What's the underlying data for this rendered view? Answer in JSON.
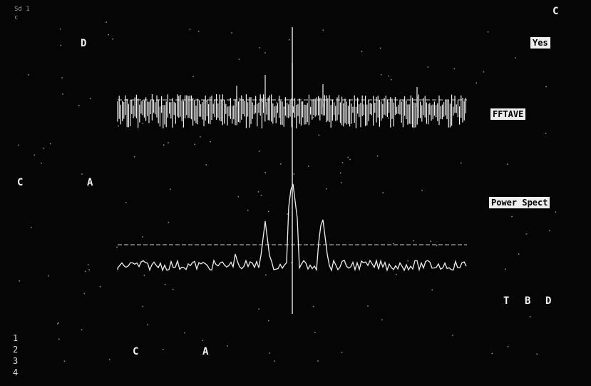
{
  "top_left_readout": [
    "Sd 1",
    "c"
  ],
  "markers": {
    "top_right": "C",
    "upper_d": "D",
    "mid_c": "C",
    "mid_a": "A",
    "bottom_c": "C",
    "bottom_a": "A",
    "right_t": "T",
    "right_b": "B",
    "right_d": "D"
  },
  "softkeys": {
    "yes": "Yes",
    "fftave": "FFTAVE",
    "power_spect": "Power Spect"
  },
  "channel_numbers": [
    "1",
    "2",
    "3",
    "4"
  ],
  "traces": {
    "upper": "FFT average trace (noisy, bar-like)",
    "lower": "Power spectrum trace with peaks near center"
  },
  "colors": {
    "background": "#050505",
    "trace": "#f0f0f0",
    "grid": "#bfbfbf"
  }
}
